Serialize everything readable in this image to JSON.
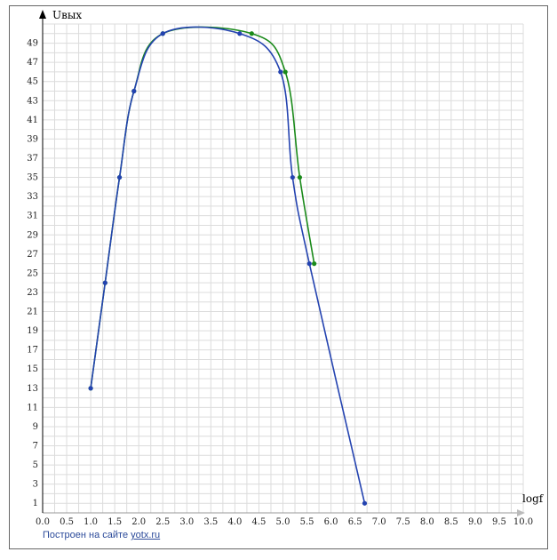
{
  "chart_data": {
    "type": "line",
    "xlabel": "logf",
    "ylabel": "Uвых",
    "xlim": [
      0,
      10
    ],
    "ylim": [
      0,
      51
    ],
    "x_ticks": [
      0.0,
      0.5,
      1.0,
      1.5,
      2.0,
      2.5,
      3.0,
      3.5,
      4.0,
      4.5,
      5.0,
      5.5,
      6.0,
      6.5,
      7.0,
      7.5,
      8.0,
      8.5,
      9.0,
      9.5,
      10.0
    ],
    "y_ticks": [
      1,
      3,
      5,
      7,
      9,
      11,
      13,
      15,
      17,
      19,
      21,
      23,
      25,
      27,
      29,
      31,
      33,
      35,
      37,
      39,
      41,
      43,
      45,
      47,
      49
    ],
    "grid": true,
    "series": [
      {
        "color": "#1a8a1a",
        "x": [
          1.0,
          1.3,
          1.6,
          1.9,
          2.5,
          4.35,
          5.05,
          5.35,
          5.65
        ],
        "y": [
          13,
          24,
          35,
          44,
          50,
          50,
          46,
          35,
          26
        ]
      },
      {
        "color": "#2443b0",
        "x": [
          1.0,
          1.3,
          1.6,
          1.9,
          2.5,
          4.1,
          4.95,
          5.2,
          5.55,
          6.7
        ],
        "y": [
          13,
          24,
          35,
          44,
          50,
          50,
          46,
          35,
          26,
          1
        ]
      }
    ]
  },
  "footer": {
    "text": "Построен на сайте",
    "link": "yotx.ru"
  }
}
